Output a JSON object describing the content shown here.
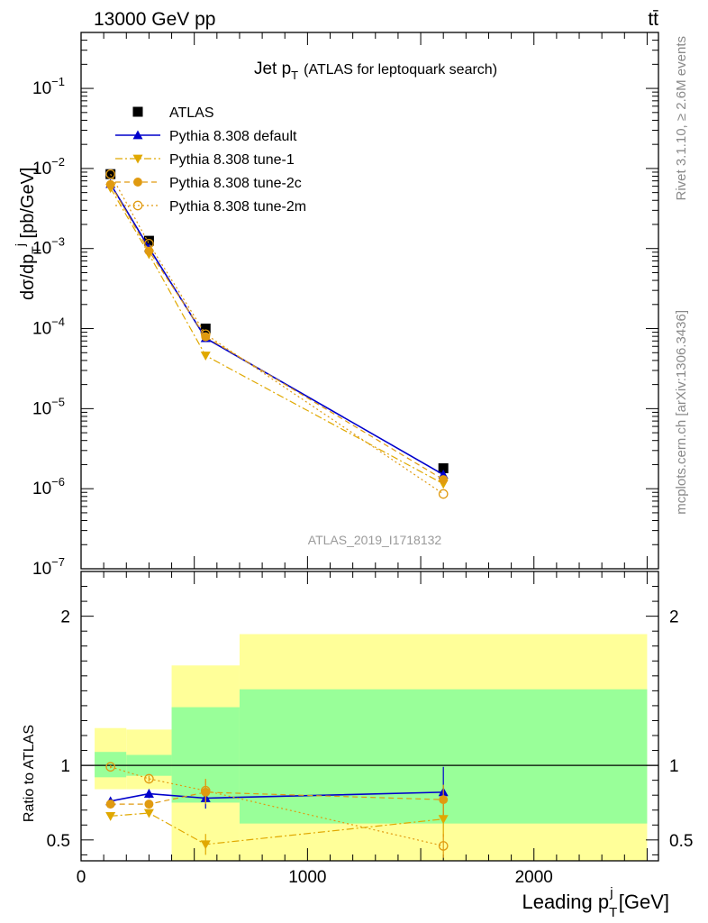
{
  "header": {
    "left": "13000 GeV pp",
    "right": "tt̄"
  },
  "side_labels": {
    "rivet": "Rivet 3.1.10, ≥ 2.6M events",
    "mcplots": "mcplots.cern.ch [arXiv:1306.3436]"
  },
  "chart_data": [
    {
      "type": "scatter",
      "panel": "main",
      "title": "Jet p_T (ATLAS for leptoquark search)",
      "title_main": "Jet p",
      "title_sub": "T",
      "title_rest": "(ATLAS for leptoquark search)",
      "ylabel": "dσ/dp_T^j [pb/GeV]",
      "ylabel_parts": {
        "a": "dσ/dp",
        "sub": "T",
        "sup": "j",
        "b": " [pb/GeV]"
      },
      "y_scale": "log",
      "ylim": [
        1e-07,
        0.5
      ],
      "y_ticks": [
        {
          "v": 0.1,
          "base": "10",
          "exp": "−1"
        },
        {
          "v": 0.01,
          "base": "10",
          "exp": "−2"
        },
        {
          "v": 0.001,
          "base": "10",
          "exp": "−3"
        },
        {
          "v": 0.0001,
          "base": "10",
          "exp": "−4"
        },
        {
          "v": 1e-05,
          "base": "10",
          "exp": "−5"
        },
        {
          "v": 1e-06,
          "base": "10",
          "exp": "−6"
        },
        {
          "v": 1e-07,
          "base": "10",
          "exp": "−7"
        }
      ],
      "watermark": "ATLAS_2019_I1718132",
      "legend_position": "top-left",
      "series": [
        {
          "name": "ATLAS",
          "color": "#000000",
          "marker": "square",
          "x": [
            130,
            300,
            550,
            1600
          ],
          "y": [
            0.0085,
            0.00125,
            0.0001,
            1.8e-06
          ]
        },
        {
          "name": "Pythia 8.308 default",
          "color": "#0000cc",
          "marker": "triangle-up",
          "dash": "",
          "x": [
            130,
            300,
            550,
            1600
          ],
          "y": [
            0.0064,
            0.00102,
            7.6e-05,
            1.5e-06
          ]
        },
        {
          "name": "Pythia 8.308 tune-1",
          "color": "#e0a800",
          "marker": "triangle-down",
          "dash": "8,3,2,3",
          "x": [
            130,
            300,
            550,
            1600
          ],
          "y": [
            0.0057,
            0.00085,
            4.6e-05,
            1.15e-06
          ]
        },
        {
          "name": "Pythia 8.308 tune-2c",
          "color": "#e09a10",
          "marker": "circle-filled",
          "dash": "6,4",
          "x": [
            130,
            300,
            550,
            1600
          ],
          "y": [
            0.0063,
            0.00093,
            7.9e-05,
            1.3e-06
          ]
        },
        {
          "name": "Pythia 8.308 tune-2m",
          "color": "#e09a10",
          "marker": "circle-open",
          "dash": "2,3",
          "x": [
            130,
            300,
            550,
            1600
          ],
          "y": [
            0.0085,
            0.00115,
            8.5e-05,
            8.6e-07
          ]
        }
      ]
    },
    {
      "type": "scatter",
      "panel": "ratio",
      "ylabel": "Ratio to ATLAS",
      "ylim": [
        0.36,
        2.3
      ],
      "y_ticks": [
        {
          "v": 0.5,
          "label": "0.5"
        },
        {
          "v": 1,
          "label": "1"
        },
        {
          "v": 2,
          "label": "2"
        }
      ],
      "xlabel": "Leading p_T^j [GeV]",
      "xlabel_parts": {
        "a": "Leading p",
        "sub": "T",
        "sup": "j",
        "b": " [GeV]"
      },
      "xlim": [
        0,
        2550
      ],
      "x_ticks": [
        {
          "v": 0,
          "label": "0"
        },
        {
          "v": 1000,
          "label": "1000"
        },
        {
          "v": 2000,
          "label": "2000"
        }
      ],
      "uncertainty_bands": [
        {
          "x": [
            60,
            200
          ],
          "inner": [
            0.92,
            1.09
          ],
          "outer": [
            0.84,
            1.25
          ]
        },
        {
          "x": [
            200,
            400
          ],
          "inner": [
            0.93,
            1.07
          ],
          "outer": [
            0.84,
            1.24
          ]
        },
        {
          "x": [
            400,
            700
          ],
          "inner": [
            0.75,
            1.39
          ],
          "outer": [
            0.36,
            1.67
          ]
        },
        {
          "x": [
            700,
            2500
          ],
          "inner": [
            0.61,
            1.51
          ],
          "outer": [
            0.36,
            1.88
          ]
        }
      ],
      "band_colors": {
        "inner": "#99ff99",
        "outer": "#ffff99"
      },
      "series": [
        {
          "name": "Pythia 8.308 default",
          "color": "#0000cc",
          "marker": "triangle-up",
          "dash": "",
          "x": [
            130,
            300,
            550,
            1600
          ],
          "y": [
            0.76,
            0.81,
            0.78,
            0.82
          ],
          "err": [
            0.015,
            0.03,
            0.07,
            0.17
          ]
        },
        {
          "name": "Pythia 8.308 tune-1",
          "color": "#e0a800",
          "marker": "triangle-down",
          "dash": "8,3,2,3",
          "x": [
            130,
            300,
            550,
            1600
          ],
          "y": [
            0.66,
            0.68,
            0.47,
            0.64
          ],
          "err": [
            0.01,
            0.02,
            0.07,
            0.12
          ]
        },
        {
          "name": "Pythia 8.308 tune-2c",
          "color": "#e09a10",
          "marker": "circle-filled",
          "dash": "6,4",
          "x": [
            130,
            300,
            550,
            1600
          ],
          "y": [
            0.74,
            0.74,
            0.82,
            0.77
          ],
          "err": [
            0.01,
            0.02,
            0.08,
            0.1
          ]
        },
        {
          "name": "Pythia 8.308 tune-2m",
          "color": "#e09a10",
          "marker": "circle-open",
          "dash": "2,3",
          "x": [
            130,
            300,
            550,
            1600
          ],
          "y": [
            0.99,
            0.91,
            0.83,
            0.46
          ],
          "err": [
            0.01,
            0.02,
            0.08,
            0.08
          ]
        }
      ]
    }
  ]
}
